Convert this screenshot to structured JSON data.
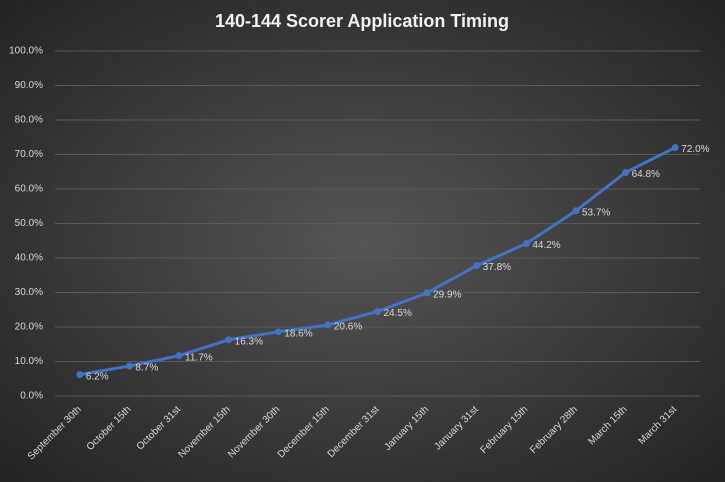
{
  "chart_data": {
    "type": "line",
    "title": "140-144 Scorer Application Timing",
    "categories": [
      "September 30th",
      "October 15th",
      "October 31st",
      "November 15th",
      "November 30th",
      "December 15th",
      "December 31st",
      "January 15th",
      "January 31st",
      "February 15th",
      "February 28th",
      "March 15th",
      "March 31st"
    ],
    "series": [
      {
        "color": "#4472c4",
        "values": [
          6.2,
          8.7,
          11.7,
          16.3,
          18.6,
          20.6,
          24.5,
          29.9,
          37.8,
          44.2,
          53.7,
          64.8,
          72.0
        ],
        "value_labels": [
          "6.2%",
          "8.7%",
          "11.7%",
          "16.3%",
          "18.6%",
          "20.6%",
          "24.5%",
          "29.9%",
          "37.8%",
          "44.2%",
          "53.7%",
          "64.8%",
          "72.0%"
        ]
      }
    ],
    "ylim": [
      0,
      100
    ],
    "yticks": [
      {
        "value": 0,
        "label": "0.0%"
      },
      {
        "value": 10,
        "label": "10.0%"
      },
      {
        "value": 20,
        "label": "20.0%"
      },
      {
        "value": 30,
        "label": "30.0%"
      },
      {
        "value": 40,
        "label": "40.0%"
      },
      {
        "value": 50,
        "label": "50.0%"
      },
      {
        "value": 60,
        "label": "60.0%"
      },
      {
        "value": 70,
        "label": "70.0%"
      },
      {
        "value": 80,
        "label": "80.0%"
      },
      {
        "value": 90,
        "label": "90.0%"
      },
      {
        "value": 100,
        "label": "100.0%"
      }
    ],
    "grid": true
  }
}
